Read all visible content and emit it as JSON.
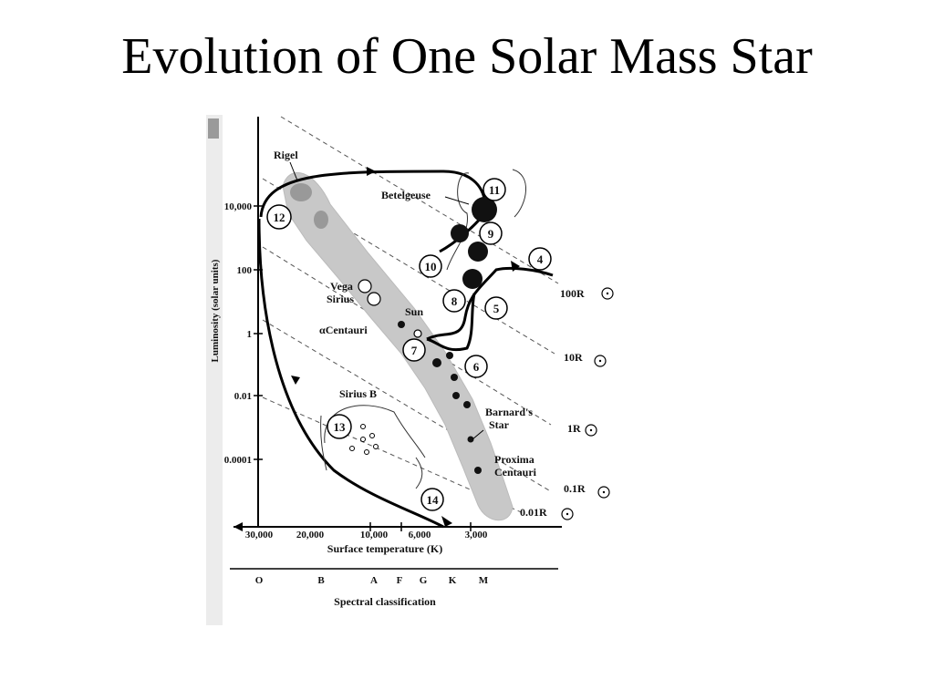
{
  "title": "Evolution of One Solar Mass Star",
  "diagram": {
    "y_axis_label": "Luminosity (solar units)",
    "x_axis_label": "Surface temperature (K)",
    "spectral_label": "Spectral classification",
    "luminosity_ticks": [
      "10,000",
      "100",
      "1",
      "0.01",
      "0.0001"
    ],
    "temperature_ticks": [
      "30,000",
      "20,000",
      "10,000",
      "6,000",
      "3,000"
    ],
    "spectral_classes": [
      "O",
      "B",
      "A",
      "F",
      "G",
      "K",
      "M"
    ],
    "radius_lines": [
      "100R",
      "10R",
      "1R",
      "0.1R",
      "0.01R"
    ],
    "star_labels": {
      "rigel": "Rigel",
      "betelgeuse": "Betelgeuse",
      "vega": "Vega",
      "sirius": "Sirius",
      "sun": "Sun",
      "alpha_centauri": "αCentauri",
      "sirius_b": "Sirius B",
      "barnards_line1": "Barnard's",
      "barnards_line2": "Star",
      "proxima_line1": "Proxima",
      "proxima_line2": "Centauri"
    },
    "stage_numbers": [
      "4",
      "5",
      "6",
      "7",
      "8",
      "9",
      "10",
      "11",
      "12",
      "13",
      "14"
    ]
  }
}
